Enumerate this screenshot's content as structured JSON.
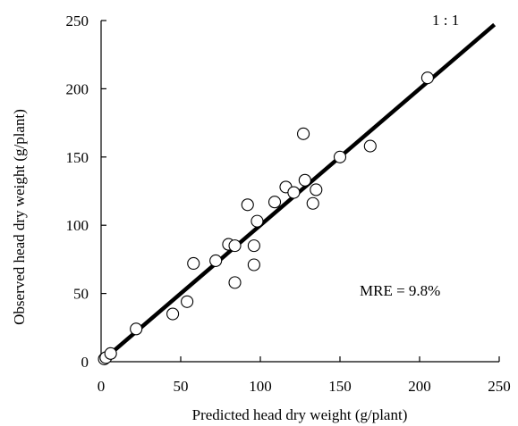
{
  "chart_data": {
    "type": "scatter",
    "title": "",
    "xlabel": "Predicted head dry weight (g/plant)",
    "ylabel": "Observed head dry weight (g/plant)",
    "xlim": [
      0,
      250
    ],
    "ylim": [
      0,
      250
    ],
    "xticks": [
      "0",
      "50",
      "100",
      "150",
      "200",
      "250"
    ],
    "yticks": [
      "0",
      "50",
      "100",
      "150",
      "200",
      "250"
    ],
    "grid": false,
    "legend": "none",
    "reference_line": {
      "label": "1 : 1",
      "slope": 1,
      "intercept": 0
    },
    "annotation": "MRE = 9.8%",
    "marker": {
      "shape": "open-circle",
      "color": "#000000"
    },
    "series": [
      {
        "points": [
          {
            "x": 2,
            "y": 2
          },
          {
            "x": 3,
            "y": 3
          },
          {
            "x": 6,
            "y": 6
          },
          {
            "x": 22,
            "y": 24
          },
          {
            "x": 45,
            "y": 35
          },
          {
            "x": 54,
            "y": 44
          },
          {
            "x": 58,
            "y": 72
          },
          {
            "x": 72,
            "y": 74
          },
          {
            "x": 80,
            "y": 86
          },
          {
            "x": 84,
            "y": 85
          },
          {
            "x": 84,
            "y": 58
          },
          {
            "x": 92,
            "y": 115
          },
          {
            "x": 96,
            "y": 85
          },
          {
            "x": 96,
            "y": 71
          },
          {
            "x": 98,
            "y": 103
          },
          {
            "x": 109,
            "y": 117
          },
          {
            "x": 116,
            "y": 128
          },
          {
            "x": 121,
            "y": 124
          },
          {
            "x": 127,
            "y": 167
          },
          {
            "x": 128,
            "y": 133
          },
          {
            "x": 133,
            "y": 116
          },
          {
            "x": 135,
            "y": 126
          },
          {
            "x": 150,
            "y": 150
          },
          {
            "x": 169,
            "y": 158
          },
          {
            "x": 205,
            "y": 208
          }
        ]
      }
    ]
  }
}
